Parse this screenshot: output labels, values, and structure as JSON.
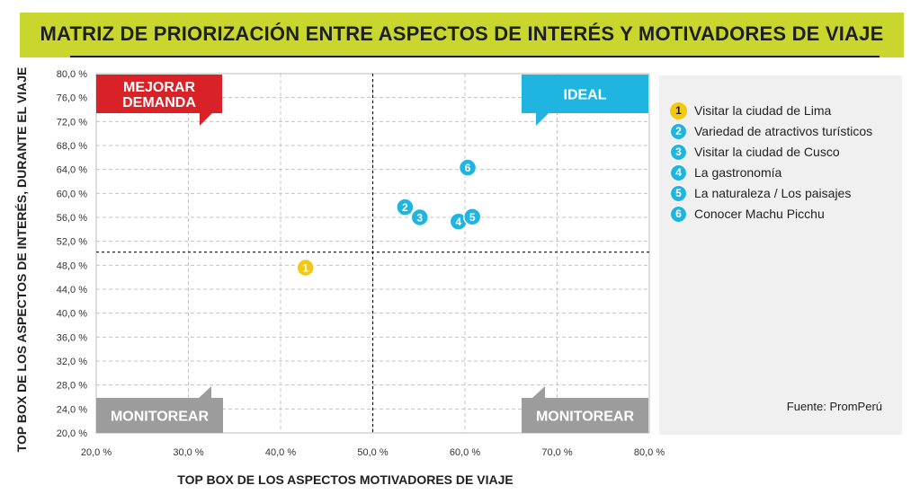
{
  "title": "MATRIZ DE PRIORIZACIÓN ENTRE ASPECTOS DE INTERÉS Y MOTIVADORES DE VIAJE",
  "source": "Fuente: PromPerú",
  "colors": {
    "title_bg": "#c9d62e",
    "yellow": "#f2c811",
    "cyan": "#1fb5e0",
    "red": "#d92128",
    "gray": "#9c9c9c"
  },
  "quadrants": {
    "top_left": "MEJORAR DEMANDA",
    "top_right": "IDEAL",
    "bottom_left": "MONITOREAR",
    "bottom_right": "MONITOREAR"
  },
  "legend": [
    {
      "num": "1",
      "label": "Visitar la ciudad de Lima"
    },
    {
      "num": "2",
      "label": "Variedad de atractivos turísticos"
    },
    {
      "num": "3",
      "label": "Visitar la ciudad de Cusco"
    },
    {
      "num": "4",
      "label": "La gastronomía"
    },
    {
      "num": "5",
      "label": "La naturaleza / Los paisajes"
    },
    {
      "num": "6",
      "label": "Conocer Machu Picchu"
    }
  ],
  "chart_data": {
    "type": "scatter",
    "title": "MATRIZ DE PRIORIZACIÓN ENTRE ASPECTOS DE INTERÉS Y MOTIVADORES DE VIAJE",
    "xlabel": "TOP BOX DE LOS ASPECTOS MOTIVADORES DE VIAJE",
    "ylabel": "TOP BOX DE LOS ASPECTOS DE INTERÉS, DURANTE EL VIAJE",
    "xlim": [
      20,
      80
    ],
    "ylim": [
      20,
      80
    ],
    "x_ticks": [
      "20,0 %",
      "30,0 %",
      "40,0 %",
      "50,0 %",
      "60,0 %",
      "70,0 %",
      "80,0 %"
    ],
    "y_ticks": [
      "80,0 %",
      "76,0 %",
      "72,0 %",
      "68,0 %",
      "64,0 %",
      "60,0 %",
      "56,0 %",
      "52,0 %",
      "48,0 %",
      "44,0 %",
      "40,0 %",
      "36,0 %",
      "32,0 %",
      "28,0 %",
      "24,0 %",
      "20,0 %"
    ],
    "x_threshold": 50,
    "y_threshold": 50.2,
    "grid": true,
    "legend_position": "right",
    "points": [
      {
        "id": "1",
        "label": "Visitar la ciudad de Lima",
        "x": 42.7,
        "y": 47.6,
        "color": "yellow"
      },
      {
        "id": "2",
        "label": "Variedad de atractivos turísticos",
        "x": 53.5,
        "y": 57.7,
        "color": "cyan"
      },
      {
        "id": "3",
        "label": "Visitar la ciudad de Cusco",
        "x": 55.1,
        "y": 56.0,
        "color": "cyan"
      },
      {
        "id": "4",
        "label": "La gastronomía",
        "x": 59.3,
        "y": 55.3,
        "color": "cyan"
      },
      {
        "id": "5",
        "label": "La naturaleza / Los paisajes",
        "x": 60.8,
        "y": 56.1,
        "color": "cyan"
      },
      {
        "id": "6",
        "label": "Conocer Machu Picchu",
        "x": 60.3,
        "y": 64.3,
        "color": "cyan"
      }
    ]
  }
}
